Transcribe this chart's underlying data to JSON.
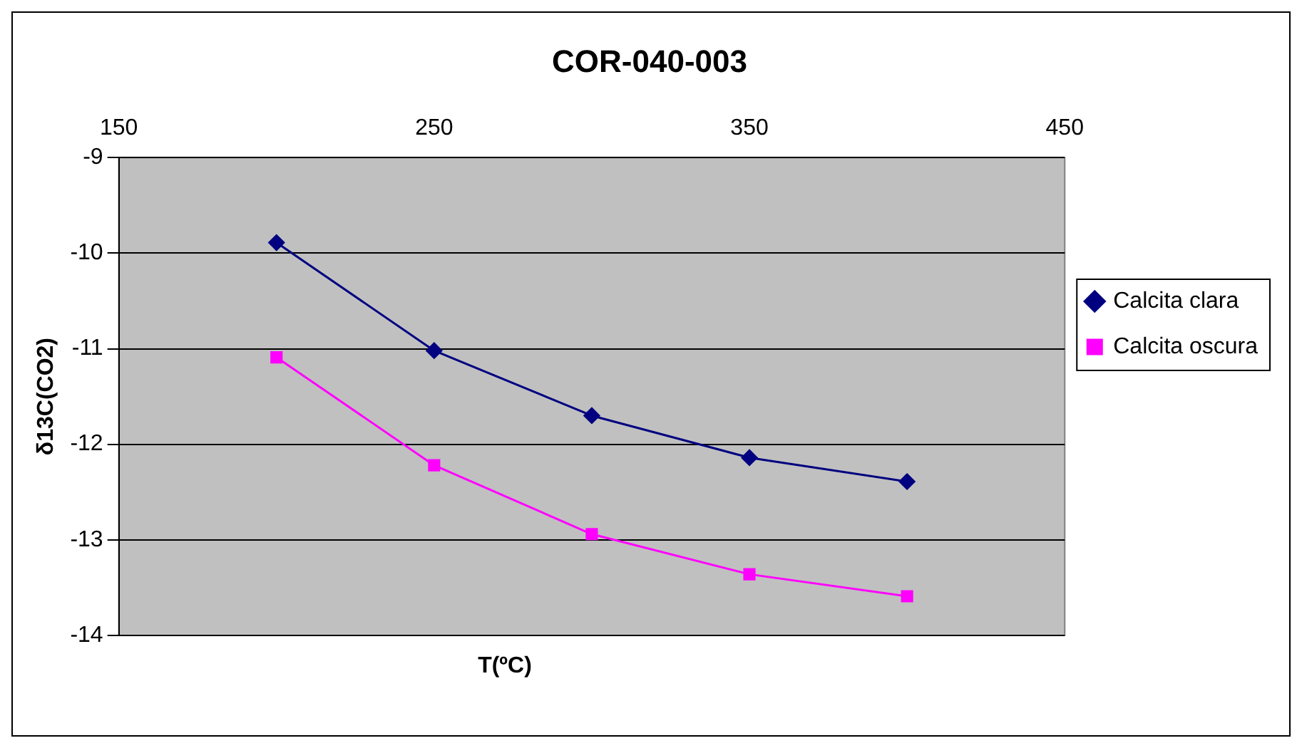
{
  "chart_data": {
    "type": "line",
    "title": "COR-040-003",
    "xlabel": "T(ºC)",
    "ylabel": "δ13C(CO2)",
    "x": [
      200,
      250,
      300,
      350,
      400
    ],
    "series": [
      {
        "name": "Calcita clara",
        "color": "#000080",
        "marker": "diamond",
        "values": [
          -9.89,
          -11.02,
          -11.7,
          -12.14,
          -12.39
        ]
      },
      {
        "name": "Calcita oscura",
        "color": "#ff00ff",
        "marker": "square",
        "values": [
          -11.09,
          -12.22,
          -12.94,
          -13.36,
          -13.59
        ]
      }
    ],
    "xlim": [
      150,
      450
    ],
    "xticks": [
      150,
      250,
      350,
      450
    ],
    "ylim": [
      -14,
      -9
    ],
    "yticks": [
      -14,
      -13,
      -12,
      -11,
      -10,
      -9
    ],
    "grid": "y",
    "legend": "right"
  }
}
